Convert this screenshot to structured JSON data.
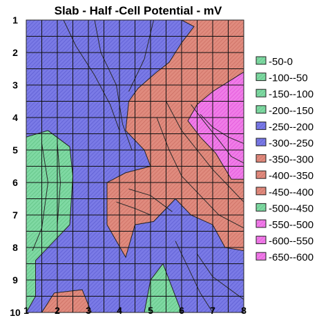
{
  "chart_data": {
    "type": "heatmap",
    "subtype": "contour",
    "title": "Slab - Half -Cell Potential - mV",
    "xlabel": "",
    "ylabel": "",
    "x_ticks": [
      "1",
      "2",
      "3",
      "4",
      "5",
      "6",
      "7",
      "8"
    ],
    "y_ticks": [
      "1",
      "2",
      "3",
      "4",
      "5",
      "6",
      "7",
      "8",
      "9",
      "10"
    ],
    "xlim": [
      1,
      8
    ],
    "ylim": [
      1,
      10
    ],
    "y_axis_inverted": true,
    "grid": true,
    "legend_position": "right",
    "legend": [
      {
        "label": "-50-0",
        "color": "#8fd9a8"
      },
      {
        "label": "-100--50",
        "color": "#6fcf97"
      },
      {
        "label": "-150--100",
        "color": "#60c588"
      },
      {
        "label": "-200--150",
        "color": "#5cbf80"
      },
      {
        "label": "-250--200",
        "color": "#6b6fd8"
      },
      {
        "label": "-300--250",
        "color": "#7a7ae6"
      },
      {
        "label": "-350--300",
        "color": "#d9776b"
      },
      {
        "label": "-400--350",
        "color": "#e08b7e"
      },
      {
        "label": "-450--400",
        "color": "#d86f63"
      },
      {
        "label": "-500--450",
        "color": "#cf6457"
      },
      {
        "label": "-550--500",
        "color": "#f07de8"
      },
      {
        "label": "-600--550",
        "color": "#ec5fe6"
      },
      {
        "label": "-650--600",
        "color": "#e84fe2"
      }
    ],
    "regions": [
      {
        "band": "-300--250",
        "points": [
          [
            1,
            1
          ],
          [
            8,
            1
          ],
          [
            8,
            10
          ],
          [
            1,
            10
          ]
        ]
      },
      {
        "band": "-400--350",
        "points": [
          [
            6,
            1
          ],
          [
            8,
            1
          ],
          [
            8,
            8.1
          ],
          [
            7.4,
            8
          ],
          [
            7,
            7.3
          ],
          [
            6.3,
            7
          ],
          [
            5.8,
            6.5
          ],
          [
            5.1,
            7.2
          ],
          [
            4.5,
            7.3
          ],
          [
            4.2,
            8.3
          ],
          [
            3.6,
            7.3
          ],
          [
            3.6,
            6
          ],
          [
            4.2,
            5.7
          ],
          [
            5,
            5.5
          ],
          [
            4.8,
            5
          ],
          [
            4.2,
            4.4
          ],
          [
            4.3,
            3.5
          ],
          [
            4.6,
            3.1
          ],
          [
            5.2,
            2.6
          ],
          [
            5.6,
            2.3
          ],
          [
            6,
            1.7
          ],
          [
            6.4,
            1.2
          ]
        ]
      },
      {
        "band": "-550--500",
        "points": [
          [
            8,
            2.6
          ],
          [
            8,
            5.9
          ],
          [
            7.6,
            5.9
          ],
          [
            7.1,
            5.1
          ],
          [
            6.6,
            4.6
          ],
          [
            6.2,
            4.1
          ],
          [
            6.5,
            3.6
          ],
          [
            7,
            3.2
          ]
        ]
      },
      {
        "band": "-150--100",
        "points": [
          [
            1,
            4.6
          ],
          [
            1.7,
            4.4
          ],
          [
            2.4,
            4.9
          ],
          [
            2.5,
            5.8
          ],
          [
            2.4,
            7.3
          ],
          [
            1.8,
            7.9
          ],
          [
            1.3,
            8.4
          ],
          [
            1.3,
            9.5
          ],
          [
            1,
            10
          ]
        ]
      },
      {
        "band": "-150--100",
        "points": [
          [
            4.8,
            10
          ],
          [
            5,
            9
          ],
          [
            5.4,
            8.5
          ],
          [
            5.6,
            9
          ],
          [
            6,
            10
          ]
        ]
      },
      {
        "band": "-400--350",
        "points": [
          [
            1.5,
            10
          ],
          [
            1.9,
            9.4
          ],
          [
            2.8,
            9.3
          ],
          [
            3.1,
            10
          ]
        ]
      }
    ],
    "annotations": []
  }
}
